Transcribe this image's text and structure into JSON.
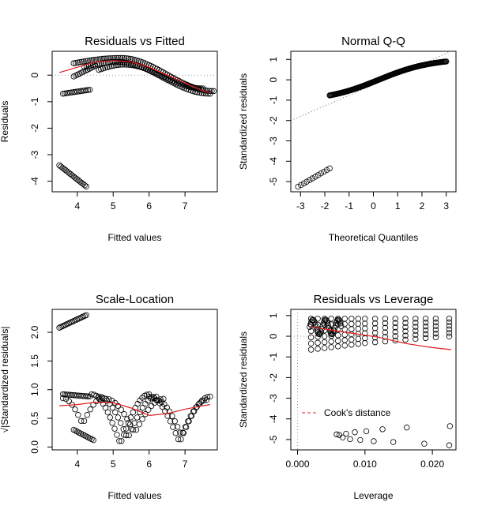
{
  "chart_data": [
    {
      "id": "residuals-vs-fitted",
      "type": "scatter",
      "title": "Residuals vs Fitted",
      "xlabel": "Fitted values",
      "ylabel": "Residuals",
      "xlim": [
        3.3,
        7.9
      ],
      "ylim": [
        -4.4,
        0.9
      ],
      "xticks": [
        4,
        5,
        6,
        7
      ],
      "yticks": [
        -4,
        -3,
        -2,
        -1,
        0
      ],
      "ref_line_y": 0,
      "smooth_color": "#e41a1c",
      "smooth": {
        "x": [
          3.5,
          4.0,
          4.5,
          5.0,
          5.5,
          6.0,
          6.5,
          7.0,
          7.5,
          7.7
        ],
        "y": [
          0.1,
          0.3,
          0.5,
          0.55,
          0.5,
          0.3,
          0.0,
          -0.3,
          -0.6,
          -0.65
        ]
      },
      "groups": [
        {
          "x_start": 3.5,
          "x_end": 4.25,
          "count": 18,
          "y_start": -3.4,
          "y_end": -4.2
        },
        {
          "x_start": 3.6,
          "x_end": 4.35,
          "count": 16,
          "y_start": -0.7,
          "y_end": -0.55
        },
        {
          "x_start": 3.9,
          "x_end": 4.5,
          "count": 12,
          "y_start": -0.05,
          "y_end": 0.35
        },
        {
          "x_start": 3.9,
          "x_end": 7.8,
          "count": 70,
          "y_start": 0.45,
          "y_mid": 0.65,
          "x_mid": 5.2,
          "y_end": -0.6
        },
        {
          "x_start": 4.2,
          "x_end": 7.7,
          "count": 60,
          "y_start": 0.3,
          "y_mid": 0.5,
          "x_mid": 5.1,
          "y_end": -0.7
        },
        {
          "x_start": 4.6,
          "x_end": 7.5,
          "count": 50,
          "y_start": 0.2,
          "y_mid": 0.4,
          "x_mid": 5.3,
          "y_end": -0.5
        }
      ]
    },
    {
      "id": "normal-qq",
      "type": "scatter",
      "title": "Normal Q-Q",
      "xlabel": "Theoretical Quantiles",
      "ylabel": "Standardized residuals",
      "xlim": [
        -3.4,
        3.4
      ],
      "ylim": [
        -5.5,
        1.4
      ],
      "xticks": [
        -3,
        -2,
        -1,
        0,
        1,
        2,
        3
      ],
      "yticks": [
        -5,
        -4,
        -3,
        -2,
        -1,
        0,
        1
      ],
      "ref_line": {
        "x": [
          -3.4,
          3.4
        ],
        "y": [
          -2.0,
          1.5
        ]
      },
      "groups": [
        {
          "x_start": -3.1,
          "x_end": -1.8,
          "count": 12,
          "y_start": -5.25,
          "y_end": -4.35
        },
        {
          "x_start": -1.8,
          "x_end": 3.0,
          "count": 160,
          "shape": "s-curve",
          "y_start": -0.9,
          "y_end": 0.9
        }
      ]
    },
    {
      "id": "scale-location",
      "type": "scatter",
      "title": "Scale-Location",
      "xlabel": "Fitted values",
      "ylabel": "√|Standardized residuals|",
      "xlim": [
        3.3,
        7.9
      ],
      "ylim": [
        -0.05,
        2.4
      ],
      "xticks": [
        4,
        5,
        6,
        7
      ],
      "yticks": [
        0.0,
        0.5,
        1.0,
        1.5,
        2.0
      ],
      "smooth_color": "#e41a1c",
      "smooth": {
        "x": [
          3.5,
          4.0,
          4.5,
          5.0,
          5.5,
          6.0,
          6.5,
          7.0,
          7.5,
          7.7
        ],
        "y": [
          0.72,
          0.74,
          0.78,
          0.77,
          0.68,
          0.55,
          0.58,
          0.66,
          0.72,
          0.74
        ]
      },
      "groups": [
        {
          "x_start": 3.5,
          "x_end": 4.25,
          "count": 18,
          "y_start": 2.08,
          "y_end": 2.3
        },
        {
          "x_start": 3.6,
          "x_end": 4.35,
          "count": 16,
          "y_start": 0.92,
          "y_end": 0.88
        },
        {
          "x_start": 3.9,
          "x_end": 4.45,
          "count": 12,
          "y_start": 0.3,
          "y_end": 0.12
        }
      ]
    },
    {
      "id": "residuals-vs-leverage",
      "type": "scatter",
      "title": "Residuals vs Leverage",
      "xlabel": "Leverage",
      "ylabel": "Standardized residuals",
      "xlim": [
        -0.001,
        0.0235
      ],
      "ylim": [
        -5.5,
        1.3
      ],
      "xticks": [
        0.0,
        0.01,
        0.02
      ],
      "xtick_labels": [
        "0.000",
        "0.010",
        "0.020"
      ],
      "yticks": [
        -5,
        -4,
        -3,
        -2,
        -1,
        0,
        1
      ],
      "ref_line_y": 0,
      "ref_line_x": 0,
      "smooth_color": "#e41a1c",
      "smooth": {
        "x": [
          0.002,
          0.004,
          0.006,
          0.008,
          0.01,
          0.012,
          0.014,
          0.016,
          0.018,
          0.02,
          0.0228
        ],
        "y": [
          0.45,
          0.35,
          0.25,
          0.15,
          0.05,
          -0.05,
          -0.2,
          -0.35,
          -0.45,
          -0.55,
          -0.65
        ]
      },
      "legend": {
        "label": "Cook's distance",
        "position": "bottom-left",
        "color": "#e41a1c"
      },
      "lower_points": {
        "x": [
          0.0058,
          0.0062,
          0.0067,
          0.0072,
          0.0078,
          0.0085,
          0.0093,
          0.0102,
          0.0113,
          0.0126,
          0.0142,
          0.0162,
          0.0188,
          0.0225
        ],
        "y": [
          -4.75,
          -4.78,
          -4.9,
          -4.72,
          -4.98,
          -4.65,
          -5.02,
          -4.6,
          -5.08,
          -4.5,
          -5.12,
          -4.42,
          -5.2,
          -5.28
        ]
      },
      "extra_points": {
        "x": [
          0.0226
        ],
        "y": [
          -4.35
        ]
      }
    }
  ]
}
